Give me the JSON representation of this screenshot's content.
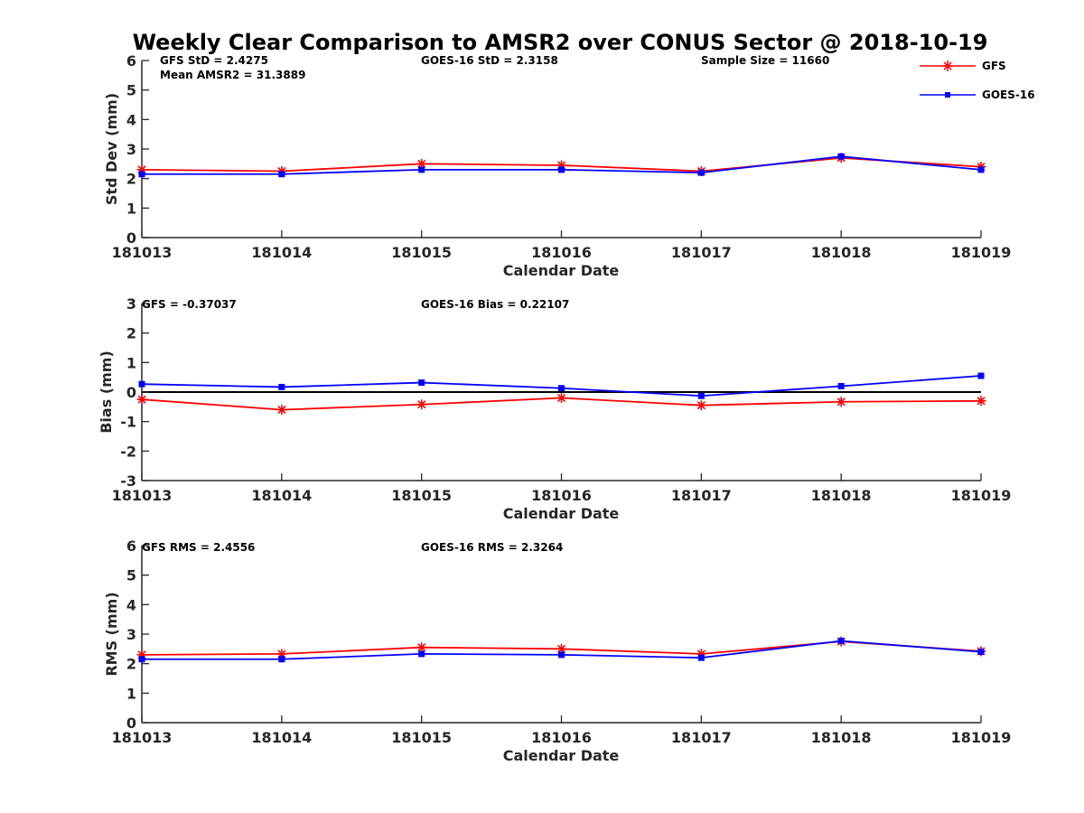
{
  "title": "Weekly Clear Comparison to AMSR2 over CONUS Sector @ 2018-10-19",
  "legend": {
    "items": [
      {
        "label": "GFS",
        "color": "#ff0000",
        "marker": "asterisk"
      },
      {
        "label": "GOES-16",
        "color": "#0000ff",
        "marker": "square"
      }
    ],
    "placement": "top-right"
  },
  "chart_data": [
    {
      "type": "line",
      "xlabel": "Calendar Date",
      "ylabel": "Std Dev (mm)",
      "categories": [
        "181013",
        "181014",
        "181015",
        "181016",
        "181017",
        "181018",
        "181019"
      ],
      "ylim": [
        0,
        6
      ],
      "yticks": [
        "0",
        "1",
        "2",
        "3",
        "4",
        "5",
        "6"
      ],
      "annotations": [
        {
          "id": "gfs-std",
          "text": "GFS StD = 2.4275"
        },
        {
          "id": "amsr2-mean",
          "text": "Mean AMSR2 = 31.3889"
        },
        {
          "id": "goes-std",
          "text": "GOES-16 StD = 2.3158"
        },
        {
          "id": "sample-size",
          "text": "Sample Size = 11660"
        }
      ],
      "series": [
        {
          "name": "GFS",
          "color": "#ff0000",
          "marker": "asterisk",
          "values": [
            2.3,
            2.25,
            2.5,
            2.45,
            2.25,
            2.7,
            2.4
          ]
        },
        {
          "name": "GOES-16",
          "color": "#0000ff",
          "marker": "square",
          "values": [
            2.15,
            2.15,
            2.3,
            2.3,
            2.2,
            2.75,
            2.3
          ]
        }
      ]
    },
    {
      "type": "line",
      "xlabel": "Calendar Date",
      "ylabel": "Bias (mm)",
      "categories": [
        "181013",
        "181014",
        "181015",
        "181016",
        "181017",
        "181018",
        "181019"
      ],
      "ylim": [
        -3,
        3
      ],
      "yticks": [
        "-3",
        "-2",
        "-1",
        "0",
        "1",
        "2",
        "3"
      ],
      "zero_line": true,
      "annotations": [
        {
          "id": "gfs-bias",
          "text": "GFS = -0.37037"
        },
        {
          "id": "goes-bias",
          "text": "GOES-16 Bias  = 0.22107"
        }
      ],
      "series": [
        {
          "name": "GFS",
          "color": "#ff0000",
          "marker": "asterisk",
          "values": [
            -0.25,
            -0.6,
            -0.42,
            -0.2,
            -0.45,
            -0.33,
            -0.3
          ]
        },
        {
          "name": "GOES-16",
          "color": "#0000ff",
          "marker": "square",
          "values": [
            0.27,
            0.17,
            0.32,
            0.13,
            -0.13,
            0.2,
            0.55
          ]
        }
      ]
    },
    {
      "type": "line",
      "xlabel": "Calendar Date",
      "ylabel": "RMS (mm)",
      "categories": [
        "181013",
        "181014",
        "181015",
        "181016",
        "181017",
        "181018",
        "181019"
      ],
      "ylim": [
        0,
        6
      ],
      "yticks": [
        "0",
        "1",
        "2",
        "3",
        "4",
        "5",
        "6"
      ],
      "annotations": [
        {
          "id": "gfs-rms",
          "text": "GFS RMS = 2.4556"
        },
        {
          "id": "goes-rms",
          "text": "GOES-16 RMS = 2.3264"
        }
      ],
      "series": [
        {
          "name": "GFS",
          "color": "#ff0000",
          "marker": "asterisk",
          "values": [
            2.3,
            2.33,
            2.55,
            2.5,
            2.33,
            2.75,
            2.42
          ]
        },
        {
          "name": "GOES-16",
          "color": "#0000ff",
          "marker": "square",
          "values": [
            2.15,
            2.15,
            2.33,
            2.3,
            2.2,
            2.77,
            2.4
          ]
        }
      ]
    }
  ]
}
